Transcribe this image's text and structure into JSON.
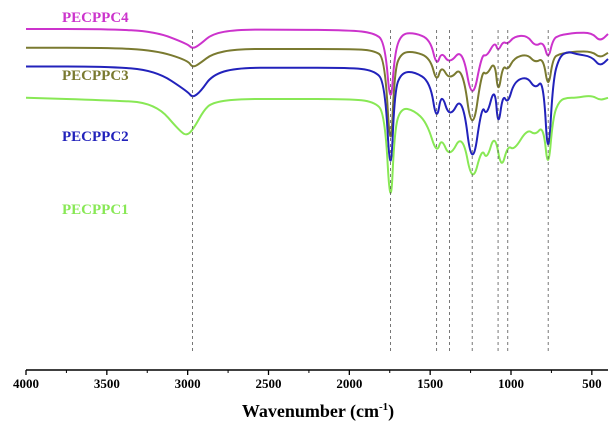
{
  "chart_data": {
    "type": "line",
    "title": "",
    "xlabel": "Wavenumber (cm",
    "xlabel_superscript": "-1",
    "xlabel_suffix": ")",
    "ylabel": "",
    "xlim": [
      4000,
      400
    ],
    "x_reversed": true,
    "x_ticks": [
      4000,
      3500,
      3000,
      2500,
      2000,
      1500,
      1000,
      500
    ],
    "grid": false,
    "legend": "labels-above-curves",
    "peak_markers_cm1": [
      2970,
      1745,
      1460,
      1380,
      1240,
      1080,
      1020,
      770
    ],
    "series": [
      {
        "name": "PECPPC4",
        "color": "#cc33cc",
        "x": [
          4000,
          3500,
          3200,
          3000,
          2970,
          2920,
          2850,
          2700,
          2400,
          2000,
          1850,
          1780,
          1745,
          1720,
          1680,
          1600,
          1500,
          1460,
          1430,
          1380,
          1300,
          1240,
          1180,
          1150,
          1100,
          1080,
          1050,
          1020,
          980,
          900,
          850,
          800,
          770,
          740,
          700,
          650,
          600,
          500,
          450,
          400
        ],
        "y": [
          1.0,
          1.0,
          0.98,
          0.88,
          0.84,
          0.88,
          0.96,
          0.995,
          0.995,
          0.99,
          0.97,
          0.9,
          0.35,
          0.8,
          0.96,
          0.97,
          0.92,
          0.7,
          0.82,
          0.72,
          0.85,
          0.4,
          0.8,
          0.78,
          0.9,
          0.82,
          0.9,
          0.88,
          0.94,
          0.95,
          0.86,
          0.9,
          0.75,
          0.92,
          0.95,
          0.96,
          0.97,
          0.97,
          0.9,
          0.96
        ]
      },
      {
        "name": "PECPPC3",
        "color": "#7a7a30",
        "x": [
          4000,
          3500,
          3200,
          3000,
          2970,
          2920,
          2850,
          2700,
          2400,
          2000,
          1850,
          1780,
          1745,
          1720,
          1680,
          1600,
          1500,
          1460,
          1430,
          1380,
          1300,
          1240,
          1180,
          1150,
          1100,
          1080,
          1050,
          1020,
          980,
          900,
          850,
          800,
          770,
          740,
          700,
          650,
          600,
          500,
          450,
          400
        ],
        "y": [
          1.0,
          1.0,
          0.98,
          0.9,
          0.84,
          0.88,
          0.95,
          0.99,
          0.99,
          0.99,
          0.98,
          0.92,
          0.1,
          0.82,
          0.96,
          0.97,
          0.92,
          0.72,
          0.86,
          0.74,
          0.86,
          0.28,
          0.82,
          0.78,
          0.9,
          0.62,
          0.86,
          0.82,
          0.92,
          0.95,
          0.88,
          0.92,
          0.66,
          0.92,
          0.95,
          0.96,
          0.97,
          0.97,
          0.92,
          0.96
        ]
      },
      {
        "name": "PECPPC2",
        "color": "#2222bb",
        "x": [
          4000,
          3500,
          3200,
          3000,
          2970,
          2920,
          2850,
          2700,
          2400,
          2000,
          1850,
          1780,
          1745,
          1720,
          1680,
          1600,
          1500,
          1460,
          1430,
          1380,
          1300,
          1240,
          1180,
          1150,
          1100,
          1080,
          1050,
          1020,
          980,
          900,
          850,
          800,
          770,
          740,
          700,
          650,
          600,
          500,
          450,
          400
        ],
        "y": [
          1.0,
          1.0,
          0.97,
          0.8,
          0.75,
          0.8,
          0.93,
          0.99,
          0.99,
          0.99,
          0.97,
          0.88,
          0.05,
          0.8,
          0.95,
          0.96,
          0.88,
          0.55,
          0.8,
          0.58,
          0.78,
          0.15,
          0.7,
          0.6,
          0.85,
          0.5,
          0.78,
          0.7,
          0.88,
          0.92,
          0.82,
          0.9,
          0.2,
          0.9,
          1.08,
          1.12,
          1.1,
          1.08,
          1.0,
          1.06
        ]
      },
      {
        "name": "PECPPC1",
        "color": "#88e855",
        "x": [
          4000,
          3500,
          3200,
          3040,
          3000,
          2960,
          2900,
          2850,
          2700,
          2400,
          2000,
          1850,
          1780,
          1745,
          1720,
          1680,
          1600,
          1520,
          1460,
          1430,
          1380,
          1300,
          1240,
          1180,
          1150,
          1100,
          1060,
          1020,
          980,
          900,
          850,
          800,
          770,
          740,
          700,
          650,
          600,
          500,
          450,
          400
        ],
        "y": [
          1.0,
          0.98,
          0.96,
          0.72,
          0.7,
          0.76,
          0.9,
          0.96,
          0.99,
          0.99,
          0.99,
          0.97,
          0.88,
          0.05,
          0.75,
          0.92,
          0.9,
          0.8,
          0.55,
          0.68,
          0.52,
          0.72,
          0.3,
          0.6,
          0.5,
          0.72,
          0.42,
          0.62,
          0.58,
          0.75,
          0.7,
          0.78,
          0.4,
          0.85,
          0.98,
          1.0,
          1.0,
          1.02,
          0.98,
          1.0
        ]
      }
    ]
  },
  "layout_hints": {
    "offsets": [
      0.0,
      -0.15,
      -0.3,
      -0.55
    ]
  }
}
